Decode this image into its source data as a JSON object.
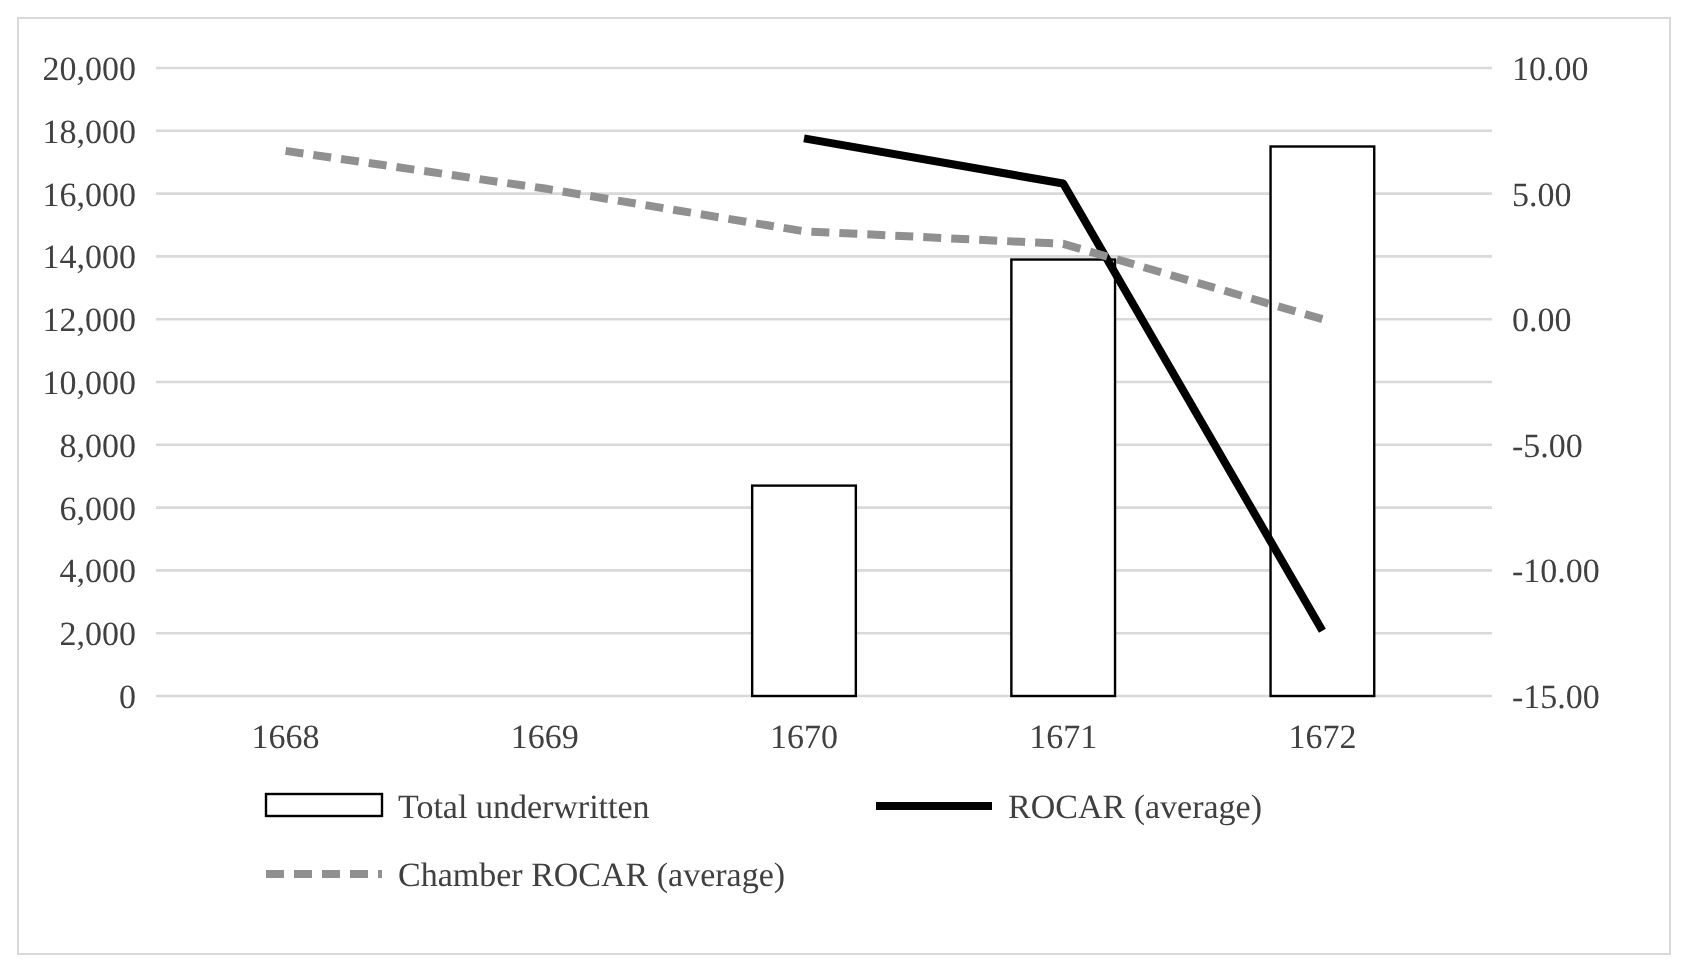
{
  "chart_data": {
    "type": "bar",
    "categories": [
      "1668",
      "1669",
      "1670",
      "1671",
      "1672"
    ],
    "series": [
      {
        "name": "Total underwritten",
        "color": "#ffffff",
        "values": [
          null,
          null,
          6700,
          13900,
          17500
        ]
      },
      {
        "name": "ROCAR (average)",
        "type": "line",
        "axis": "y2",
        "color": "#000000",
        "line_style": "solid",
        "values": [
          null,
          null,
          7.2,
          5.4,
          -12.4
        ]
      },
      {
        "name": "Chamber ROCAR (average)",
        "type": "line",
        "axis": "y2",
        "color": "#909090",
        "line_style": "dashed",
        "values": [
          6.7,
          5.2,
          3.5,
          3.0,
          0.0
        ]
      }
    ],
    "ylim": [
      0,
      20000
    ],
    "yticks": [
      {
        "value": 0,
        "label": "0"
      },
      {
        "value": 2000,
        "label": "2,000"
      },
      {
        "value": 4000,
        "label": "4,000"
      },
      {
        "value": 6000,
        "label": "6,000"
      },
      {
        "value": 8000,
        "label": "8,000"
      },
      {
        "value": 10000,
        "label": "10,000"
      },
      {
        "value": 12000,
        "label": "12,000"
      },
      {
        "value": 14000,
        "label": "14,000"
      },
      {
        "value": 16000,
        "label": "16,000"
      },
      {
        "value": 18000,
        "label": "18,000"
      },
      {
        "value": 20000,
        "label": "20,000"
      }
    ],
    "y2lim": [
      -15,
      10
    ],
    "y2ticks": [
      {
        "value": -15,
        "label": "-15.00"
      },
      {
        "value": -10,
        "label": "-10.00"
      },
      {
        "value": -5,
        "label": "-5.00"
      },
      {
        "value": 0,
        "label": "0.00"
      },
      {
        "value": 5,
        "label": "5.00"
      },
      {
        "value": 10,
        "label": "10.00"
      }
    ],
    "grid": "y",
    "legend": "bottom",
    "marker": "none"
  }
}
